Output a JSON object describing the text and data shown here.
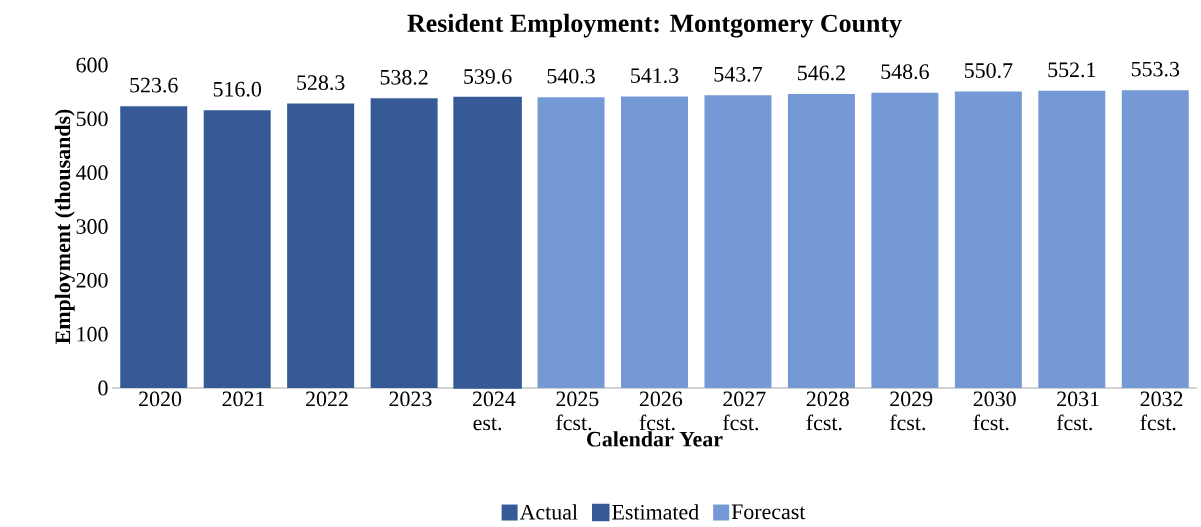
{
  "chart_data": {
    "type": "bar",
    "title": "Resident Employment:  Montgomery County",
    "xlabel": "Calendar Year",
    "ylabel": "Employment (thousands)",
    "categories": [
      "2020",
      "2021",
      "2022",
      "2023",
      "2024 est.",
      "2025 fcst.",
      "2026 fcst.",
      "2027 fcst.",
      "2028 fcst.",
      "2029 fcst.",
      "2030 fcst.",
      "2031 fcst.",
      "2032 fcst."
    ],
    "series": [
      {
        "name": "Actual",
        "color": "#355a96",
        "values": [
          523.6,
          516.0,
          528.3,
          538.2,
          null,
          null,
          null,
          null,
          null,
          null,
          null,
          null,
          null
        ],
        "value_labels": [
          "523.6",
          "516.0",
          "528.3",
          "538.2",
          null,
          null,
          null,
          null,
          null,
          null,
          null,
          null,
          null
        ]
      },
      {
        "name": "Estimated",
        "color": "#355a96",
        "values": [
          null,
          null,
          null,
          null,
          539.6,
          null,
          null,
          null,
          null,
          null,
          null,
          null,
          null
        ],
        "value_labels": [
          null,
          null,
          null,
          null,
          "539.6",
          null,
          null,
          null,
          null,
          null,
          null,
          null,
          null
        ]
      },
      {
        "name": "Forecast",
        "color": "#7599d5",
        "values": [
          null,
          null,
          null,
          null,
          null,
          540.3,
          541.3,
          543.7,
          546.2,
          548.6,
          550.7,
          552.1,
          553.3
        ],
        "value_labels": [
          null,
          null,
          null,
          null,
          null,
          "540.3",
          "541.3",
          "543.7",
          "546.2",
          "548.6",
          "550.7",
          "552.1",
          "553.3"
        ]
      }
    ],
    "ylim": [
      0,
      600
    ],
    "yticks": [
      0,
      100,
      200,
      300,
      400,
      500,
      600
    ],
    "grid": false,
    "legend": "bottom"
  }
}
